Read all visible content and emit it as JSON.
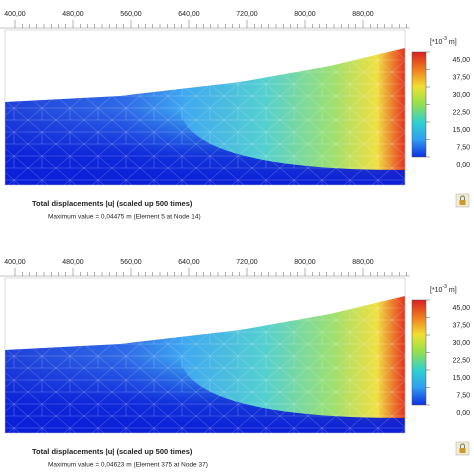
{
  "panels": [
    {
      "ruler": [
        "400,00",
        "480,00",
        "560,00",
        "640,00",
        "720,00",
        "800,00",
        "880,00"
      ],
      "legend": {
        "unit_prefix": "[*10",
        "unit_exponent": "-3",
        "unit_suffix": "m]",
        "labels": [
          "45,00",
          "37,50",
          "30,00",
          "22,50",
          "15,00",
          "7,50",
          "0,00"
        ]
      },
      "caption": "Total displacements |u| (scaled up 500 times)",
      "maximum": "Maximum value = 0,04475 m (Element 5 at Node 14)"
    },
    {
      "ruler": [
        "400,00",
        "480,00",
        "560,00",
        "640,00",
        "720,00",
        "800,00",
        "880,00"
      ],
      "legend": {
        "unit_prefix": "[*10",
        "unit_exponent": "-3",
        "unit_suffix": "m]",
        "labels": [
          "45,00",
          "37,50",
          "30,00",
          "22,50",
          "15,00",
          "7,50",
          "0,00"
        ]
      },
      "caption": "Total displacements |u| (scaled up 500 times)",
      "maximum": "Maximum value = 0,04623 m (Element 375 at Node 37)"
    }
  ]
}
